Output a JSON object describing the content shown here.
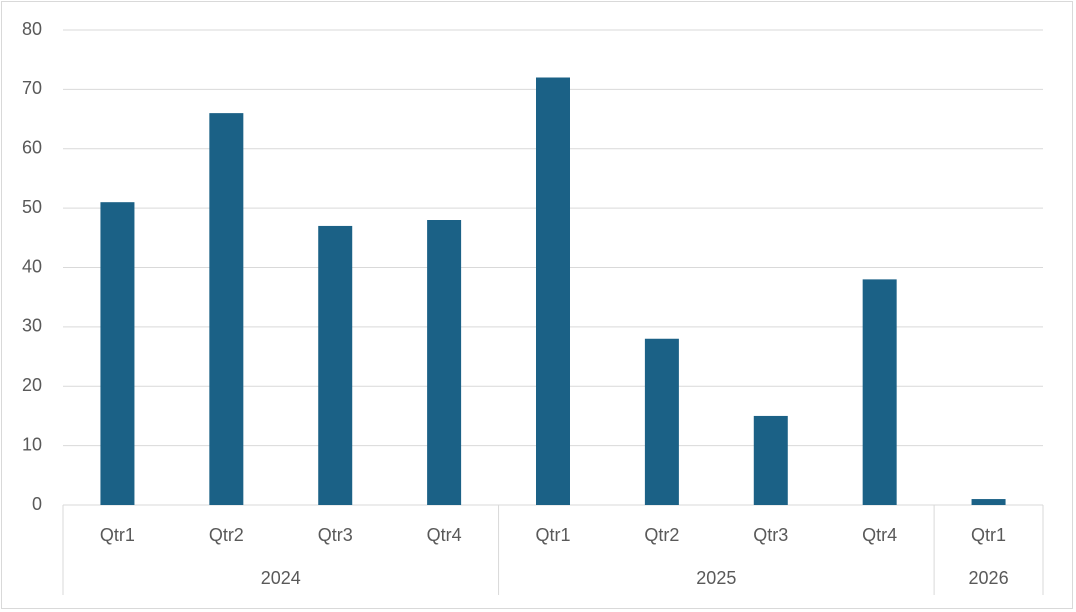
{
  "chart_data": {
    "type": "bar",
    "color": "#1b6186",
    "ylim": [
      0,
      80
    ],
    "yticks": [
      0,
      10,
      20,
      30,
      40,
      50,
      60,
      70,
      80
    ],
    "grid": true,
    "groups": [
      {
        "label": "2024",
        "categories": [
          "Qtr1",
          "Qtr2",
          "Qtr3",
          "Qtr4"
        ],
        "values": [
          51,
          66,
          47,
          48
        ]
      },
      {
        "label": "2025",
        "categories": [
          "Qtr1",
          "Qtr2",
          "Qtr3",
          "Qtr4"
        ],
        "values": [
          72,
          28,
          15,
          38
        ]
      },
      {
        "label": "2026",
        "categories": [
          "Qtr1"
        ],
        "values": [
          1
        ]
      }
    ]
  }
}
